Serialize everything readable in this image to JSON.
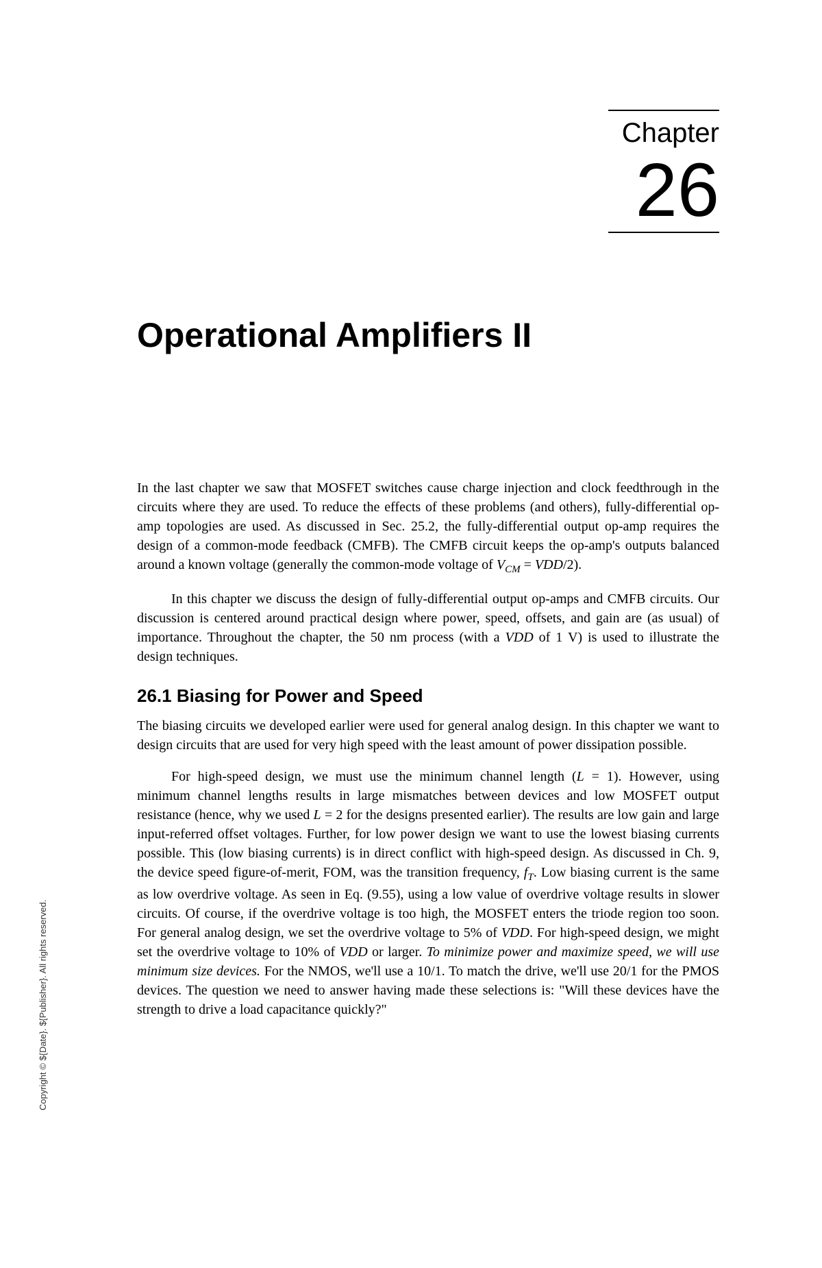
{
  "chapter": {
    "label": "Chapter",
    "number": "26",
    "title": "Operational Amplifiers II"
  },
  "intro": {
    "paragraph1_text": "In the last chapter we saw that MOSFET switches cause charge injection and clock feedthrough in the circuits where they are used. To reduce the effects of these problems (and others), fully-differential op-amp topologies are used. As discussed in Sec. 25.2, the fully-differential output op-amp requires the design of a common-mode feedback (CMFB). The CMFB circuit keeps the op-amp's outputs balanced around a known voltage (generally the common-mode voltage of ",
    "paragraph1_vcm": "V",
    "paragraph1_cm_sub": "CM",
    "paragraph1_middle": " = ",
    "paragraph1_vdd": "VDD",
    "paragraph1_end": "/2).",
    "paragraph2_text": "In this chapter we discuss the design of fully-differential output op-amps and CMFB circuits. Our discussion is centered around practical design where power, speed, offsets, and gain are (as usual) of importance. Throughout the chapter, the 50 nm process (with a ",
    "paragraph2_vdd": "VDD",
    "paragraph2_end": " of 1 V) is used to illustrate the design techniques."
  },
  "section": {
    "heading": "26.1 Biasing for Power and Speed",
    "paragraph1": "The biasing circuits we developed earlier were used for general analog design. In this chapter we want to design circuits that are used for very high speed with the least amount of power dissipation possible.",
    "paragraph2_start": "For high-speed design, we must use the minimum channel length (",
    "paragraph2_L": "L",
    "paragraph2_eq1": " = 1). However, using minimum channel lengths results in large mismatches between devices and low MOSFET output resistance (hence, why we used ",
    "paragraph2_L2": "L",
    "paragraph2_mid1": " = 2 for the designs presented earlier). The results are low gain and large input-referred offset voltages. Further, for low power design we want to use the lowest biasing currents possible. This (low biasing currents) is in direct conflict with high-speed design. As discussed in Ch. 9, the device speed figure-of-merit, FOM, was the transition frequency, ",
    "paragraph2_ft": "f",
    "paragraph2_t_sub": "T",
    "paragraph2_mid2": ". Low biasing current is the same as low overdrive voltage. As seen in Eq. (9.55), using a low value of overdrive voltage results in slower circuits. Of course, if the overdrive voltage is too high, the MOSFET enters the triode region too soon. For general analog design, we set the overdrive voltage to 5% of ",
    "paragraph2_vdd1": "VDD",
    "paragraph2_mid3": ". For high-speed design, we might set the overdrive voltage to 10% of ",
    "paragraph2_vdd2": "VDD",
    "paragraph2_mid4": " or larger. ",
    "paragraph2_italic": "To minimize power and maximize speed, we will use minimum size devices.",
    "paragraph2_end": " For the NMOS, we'll use a 10/1. To match the drive, we'll use 20/1 for the PMOS devices. The question we need to answer having made these selections is: \"Will these devices have the strength to drive a load capacitance quickly?\""
  },
  "copyright": "Copyright © ${Date}. ${Publisher}. All rights reserved."
}
